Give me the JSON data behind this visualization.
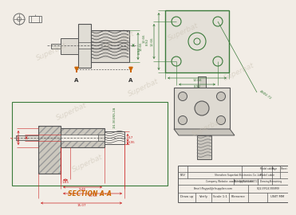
{
  "bg_color": "#f2ede6",
  "line_color": "#555555",
  "green_color": "#3a7a3a",
  "orange_color": "#cc6600",
  "red_color": "#cc2222",
  "dark_color": "#333333",
  "title_text": "SECTION A-A",
  "watermark": "Superbat",
  "dims": {
    "d1": "12.66",
    "d2": "8.92",
    "d3": "8.92",
    "d4": "12.66",
    "d5": "4XØ2.72",
    "s1": "4",
    "s2": "1.27",
    "s3": "1.65",
    "s4": "9.48",
    "s5": "13.56",
    "s6": "15.07",
    "s7": "4.7",
    "s8": "1.95",
    "s9": "1/4-36UNS-2A"
  }
}
